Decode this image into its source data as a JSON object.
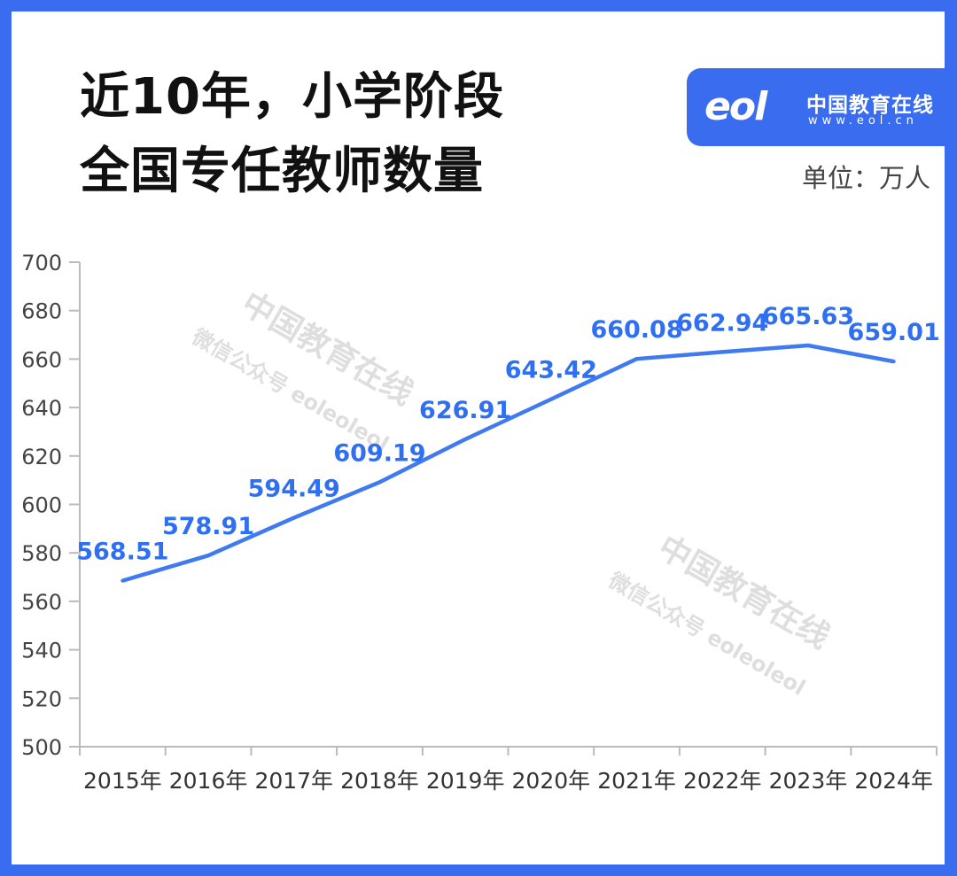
{
  "title": {
    "line1_prefix": "近10年，",
    "line1_highlight": "小学阶段",
    "line2": "全国专任教师数量"
  },
  "logo": {
    "cn": "中国教育在线",
    "url": "www.eol.cn",
    "mark": "eol"
  },
  "unit": "单位：万人",
  "watermark": {
    "main": "中国教育在线",
    "sub": "微信公众号 eoleoleol"
  },
  "colors": {
    "accent": "#3a6cf0",
    "line": "#3f7af0",
    "label": "#2f6ff2",
    "axis": "#bbbbbb"
  },
  "chart_data": {
    "type": "line",
    "categories": [
      "2015年",
      "2016年",
      "2017年",
      "2018年",
      "2019年",
      "2020年",
      "2021年",
      "2022年",
      "2023年",
      "2024年"
    ],
    "values": [
      568.51,
      578.91,
      594.49,
      609.19,
      626.91,
      643.42,
      660.08,
      662.94,
      665.63,
      659.01
    ],
    "labels": [
      "568.51",
      "578.91",
      "594.49",
      "609.19",
      "626.91",
      "643.42",
      "660.08",
      "662.94",
      "665.63",
      "659.01"
    ],
    "ylim": [
      500,
      700
    ],
    "yticks": [
      500,
      520,
      540,
      560,
      580,
      600,
      620,
      640,
      660,
      680,
      700
    ],
    "grid": false,
    "legend": "none"
  }
}
